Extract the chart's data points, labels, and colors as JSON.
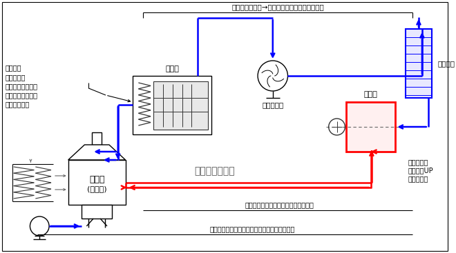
{
  "bg_color": "#ffffff",
  "top_label": "乾燥排ガス減少→脱臭炉処理量削減＝燃料削減",
  "bottom_label1": "乾燥に必要な熱風量を循環ガスで補う",
  "bottom_label2": "フレッシュエア：循環ガス相当分の外気を絞る",
  "center_label": "循環ダクト増設",
  "left_label0": "乾燥熱源",
  "left_label1": "循環ガスが",
  "left_label2": "持っている熱量分",
  "left_label3": "焼却バーナ燃焼量",
  "left_label4": "を削減できる",
  "dryer_label": "乾燥機",
  "fan_label": "誘引ファン",
  "hx_label": "熱交換器",
  "inc_label1": "焼却炉",
  "inc_label2": "(熱風炉)",
  "deo_label": "脱臭炉",
  "deo_sub1": "改造により",
  "deo_sub2": "混合効率UP",
  "deo_sub3": "＝燃料削減",
  "blue": "#0000ff",
  "red": "#ff0000",
  "black": "#000000",
  "gray": "#666666",
  "darkgray": "#333333"
}
